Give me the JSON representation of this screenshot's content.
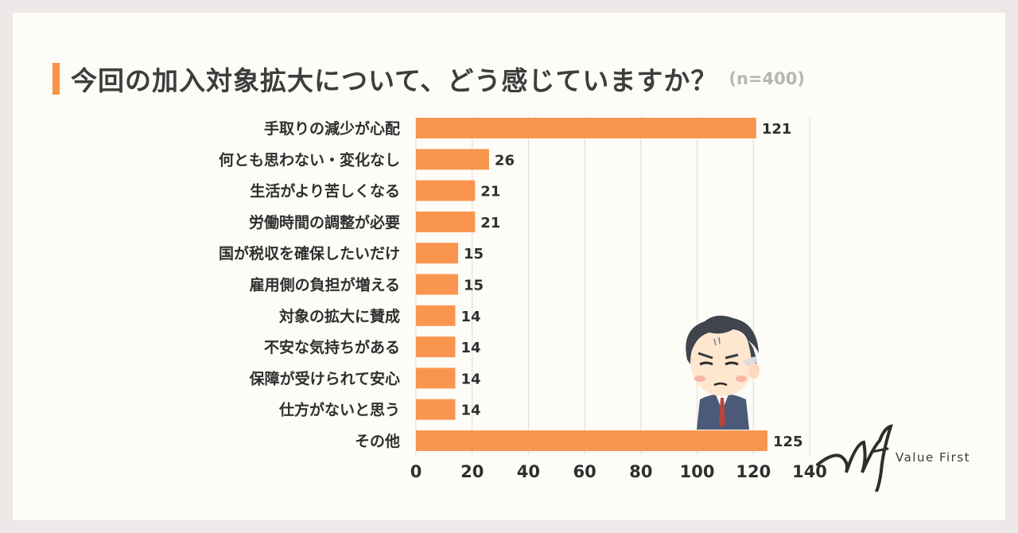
{
  "title": "今回の加入対象拡大について、どう感じていますか？",
  "sample_size": "(n=400)",
  "logo_text": "Value First",
  "colors": {
    "bar": "#fa9550",
    "accent": "#f79545",
    "grid": "#dedbd5",
    "text": "#2f2f2f"
  },
  "chart_data": {
    "type": "bar",
    "orientation": "horizontal",
    "categories": [
      "手取りの減少が心配",
      "何とも思わない・変化なし",
      "生活がより苦しくなる",
      "労働時間の調整が必要",
      "国が税収を確保したいだけ",
      "雇用側の負担が増える",
      "対象の拡大に賛成",
      "不安な気持ちがある",
      "保障が受けられて安心",
      "仕方がないと思う",
      "その他"
    ],
    "values": [
      121,
      26,
      21,
      21,
      15,
      15,
      14,
      14,
      14,
      14,
      125
    ],
    "xlim": [
      0,
      140
    ],
    "xticks": [
      0,
      20,
      40,
      60,
      80,
      100,
      120,
      140
    ],
    "grid": "vertical",
    "data_labels": true
  }
}
